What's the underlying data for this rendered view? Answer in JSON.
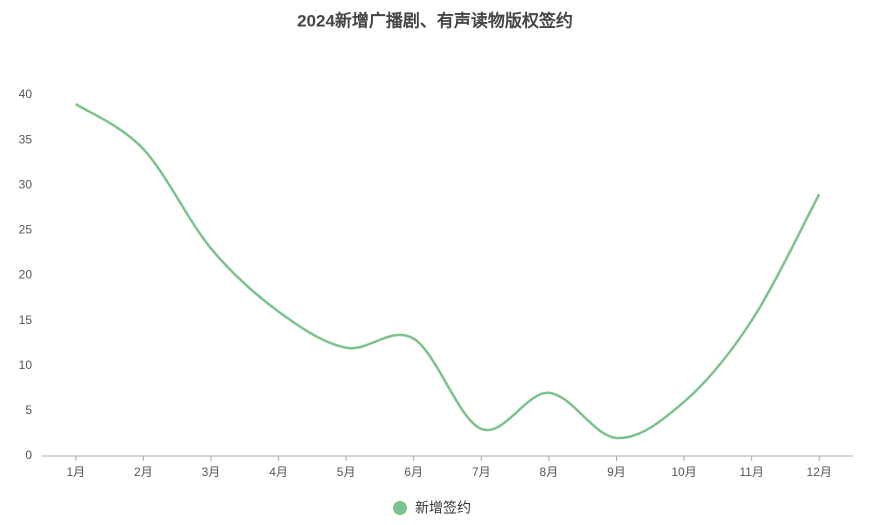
{
  "chart_data": {
    "type": "line",
    "title": "2024新增广播剧、有声读物版权签约",
    "categories": [
      "1月",
      "2月",
      "3月",
      "4月",
      "5月",
      "6月",
      "7月",
      "8月",
      "9月",
      "10月",
      "11月",
      "12月"
    ],
    "series": [
      {
        "name": "新增签约",
        "color": "#7cc28c",
        "values": [
          39,
          34,
          23,
          16,
          12,
          13,
          3,
          7,
          2,
          6,
          15,
          29
        ]
      }
    ],
    "ylim": [
      0,
      40
    ],
    "yticks": [
      0,
      5,
      10,
      15,
      20,
      25,
      30,
      35,
      40
    ],
    "grid": false,
    "smooth": true,
    "legend": "bottom"
  }
}
